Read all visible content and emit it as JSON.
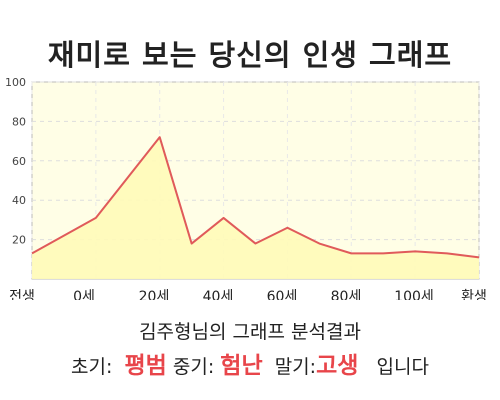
{
  "title": "재미로 보는 당신의 인생 그래프",
  "subtitle": "김주형님의 그래프 분석결과",
  "summary": {
    "early_label": "초기:",
    "early_value": "평범",
    "middle_label": "중기:",
    "middle_value": "험난",
    "late_label": "말기:",
    "late_value": "고생",
    "ending": "입니다"
  },
  "colors": {
    "line": "#e05a5a",
    "fill": "#fffbb8",
    "plot_bg": "#fffee6",
    "highlight": "#e8454a"
  },
  "chart_data": {
    "type": "area",
    "title": "재미로 보는 당신의 인생 그래프",
    "xlabel": "",
    "ylabel": "",
    "x_tick_labels": [
      "전생",
      "0세",
      "20세",
      "40세",
      "60세",
      "80세",
      "100세",
      "환생"
    ],
    "y_ticks": [
      20,
      40,
      60,
      80,
      100
    ],
    "ylim": [
      0,
      100
    ],
    "grid": true,
    "series": [
      {
        "x": [
          -20,
          0,
          20,
          30,
          40,
          50,
          60,
          70,
          80,
          90,
          100,
          110,
          120
        ],
        "values": [
          13,
          31,
          72,
          18,
          31,
          18,
          26,
          18,
          13,
          13,
          14,
          13,
          11
        ]
      }
    ]
  }
}
